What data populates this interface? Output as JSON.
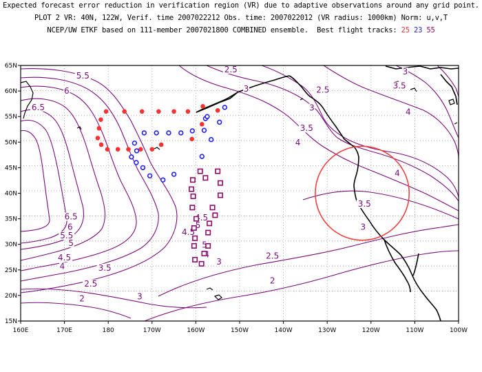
{
  "header": {
    "line1": "Expected forecast error reduction in verification region (VR) due to adaptive observations around any grid point.",
    "line2": "PLOT 2 VR: 40N, 122W, Verif. time 2007022212 Obs. time: 2007022012 (VR radius: 1000km) Norm: u,v,T",
    "line3_prefix": "NCEP/UW ETKF based on 111-member 2007021800 COMBINED ensemble.  Best flight tracks:",
    "track1_label": "25",
    "track2_label": "23",
    "track3_label": "55"
  },
  "colors": {
    "contour": "#7a0a7a",
    "track1": "#ff3030",
    "track2": "#2020ff",
    "track3": "#8b0a6a",
    "vr_circle": "#f04040",
    "coast": "#000000",
    "grid": "#9a9a9a"
  },
  "axes": {
    "lon_labels": [
      "160E",
      "170E",
      "180",
      "170W",
      "160W",
      "150W",
      "140W",
      "130W",
      "120W",
      "110W",
      "100W"
    ],
    "lat_labels": [
      "15N",
      "20N",
      "25N",
      "30N",
      "35N",
      "40N",
      "45N",
      "50N",
      "55N",
      "60N",
      "65N"
    ],
    "lon_range": [
      160,
      260
    ],
    "lat_range": [
      15,
      65
    ]
  },
  "contour_labels": [
    {
      "text": "5.5",
      "lon": 174.2,
      "lat": 62.6
    },
    {
      "text": "6",
      "lon": 170.5,
      "lat": 59.6
    },
    {
      "text": "6.5",
      "lon": 164.0,
      "lat": 56.4
    },
    {
      "text": "2.5",
      "lon": 208.0,
      "lat": 63.8
    },
    {
      "text": "3",
      "lon": 211.5,
      "lat": 60.0
    },
    {
      "text": "2.5",
      "lon": 229.0,
      "lat": 59.8
    },
    {
      "text": "3",
      "lon": 247.8,
      "lat": 63.4
    },
    {
      "text": "3.5",
      "lon": 246.5,
      "lat": 60.6
    },
    {
      "text": "3",
      "lon": 226.5,
      "lat": 56.3
    },
    {
      "text": "4",
      "lon": 248.5,
      "lat": 55.5
    },
    {
      "text": "3.5",
      "lon": 225.3,
      "lat": 52.3
    },
    {
      "text": "4",
      "lon": 223.3,
      "lat": 49.5
    },
    {
      "text": "4",
      "lon": 246.0,
      "lat": 43.5
    },
    {
      "text": "3.5",
      "lon": 238.5,
      "lat": 37.5
    },
    {
      "text": "3",
      "lon": 238.2,
      "lat": 33.0
    },
    {
      "text": "6.5",
      "lon": 171.5,
      "lat": 35.0
    },
    {
      "text": "6",
      "lon": 171.3,
      "lat": 33.0
    },
    {
      "text": "5.5",
      "lon": 170.5,
      "lat": 31.3
    },
    {
      "text": "5",
      "lon": 171.5,
      "lat": 29.8
    },
    {
      "text": "4.5",
      "lon": 170.0,
      "lat": 27.0
    },
    {
      "text": "4",
      "lon": 169.5,
      "lat": 25.3
    },
    {
      "text": "3.5",
      "lon": 179.2,
      "lat": 25.0
    },
    {
      "text": "4.5",
      "lon": 201.3,
      "lat": 34.8
    },
    {
      "text": "4.5",
      "lon": 198.3,
      "lat": 32.0
    },
    {
      "text": "5",
      "lon": 200.5,
      "lat": 33.3
    },
    {
      "text": "5",
      "lon": 202.0,
      "lat": 29.5
    },
    {
      "text": "4",
      "lon": 202.5,
      "lat": 27.6
    },
    {
      "text": "3",
      "lon": 205.3,
      "lat": 26.2
    },
    {
      "text": "2.5",
      "lon": 217.5,
      "lat": 27.3
    },
    {
      "text": "2",
      "lon": 217.5,
      "lat": 22.5
    },
    {
      "text": "3",
      "lon": 187.2,
      "lat": 19.4
    },
    {
      "text": "2.5",
      "lon": 176.0,
      "lat": 21.9
    },
    {
      "text": "2",
      "lon": 174.0,
      "lat": 19.0
    }
  ],
  "tracks": {
    "track1": [
      [
        179.5,
        56
      ],
      [
        183.7,
        56
      ],
      [
        187.7,
        56
      ],
      [
        191.5,
        56
      ],
      [
        195.0,
        56
      ],
      [
        198.2,
        56
      ],
      [
        201.6,
        57
      ],
      [
        205.0,
        56.2
      ],
      [
        201.4,
        53.5
      ],
      [
        178.3,
        54.4
      ],
      [
        177.9,
        52.7
      ],
      [
        177.6,
        50.8
      ],
      [
        178.4,
        49.5
      ],
      [
        179.8,
        48.6
      ],
      [
        182.2,
        48.6
      ],
      [
        184.6,
        48.6
      ],
      [
        187.4,
        48.6
      ],
      [
        190.0,
        48.6
      ],
      [
        192.1,
        49.5
      ],
      [
        199.1,
        50.6
      ]
    ],
    "track2": [
      [
        188.2,
        51.8
      ],
      [
        191.0,
        51.8
      ],
      [
        193.8,
        51.8
      ],
      [
        196.6,
        51.8
      ],
      [
        199.2,
        52.2
      ],
      [
        202.2,
        54.6
      ],
      [
        201.9,
        52.3
      ],
      [
        202.6,
        55.0
      ],
      [
        205.4,
        53.9
      ],
      [
        206.6,
        56.8
      ],
      [
        203.5,
        50.5
      ],
      [
        201.4,
        47.2
      ],
      [
        186.0,
        49.8
      ],
      [
        186.5,
        48.3
      ],
      [
        185.3,
        47.1
      ],
      [
        186.4,
        46.0
      ],
      [
        187.9,
        45.0
      ],
      [
        189.5,
        43.4
      ],
      [
        192.5,
        42.6
      ],
      [
        195.0,
        43.7
      ]
    ],
    "track3": [
      [
        201.0,
        44.3
      ],
      [
        202.2,
        43.0
      ],
      [
        205.0,
        44.3
      ],
      [
        205.6,
        42.0
      ],
      [
        205.6,
        39.6
      ],
      [
        199.3,
        42.6
      ],
      [
        199.0,
        40.8
      ],
      [
        199.4,
        39.4
      ],
      [
        199.2,
        37.2
      ],
      [
        203.8,
        37.2
      ],
      [
        204.4,
        35.7
      ],
      [
        200.1,
        35.0
      ],
      [
        199.6,
        33.2
      ],
      [
        203.1,
        34.1
      ],
      [
        202.8,
        32.3
      ],
      [
        199.8,
        31.2
      ],
      [
        199.6,
        29.7
      ],
      [
        202.8,
        29.7
      ],
      [
        201.9,
        28.2
      ],
      [
        199.8,
        27.0
      ],
      [
        201.3,
        26.2
      ]
    ]
  },
  "verification_region": {
    "lat": 40,
    "lon": -122,
    "radius_km": 1000
  }
}
